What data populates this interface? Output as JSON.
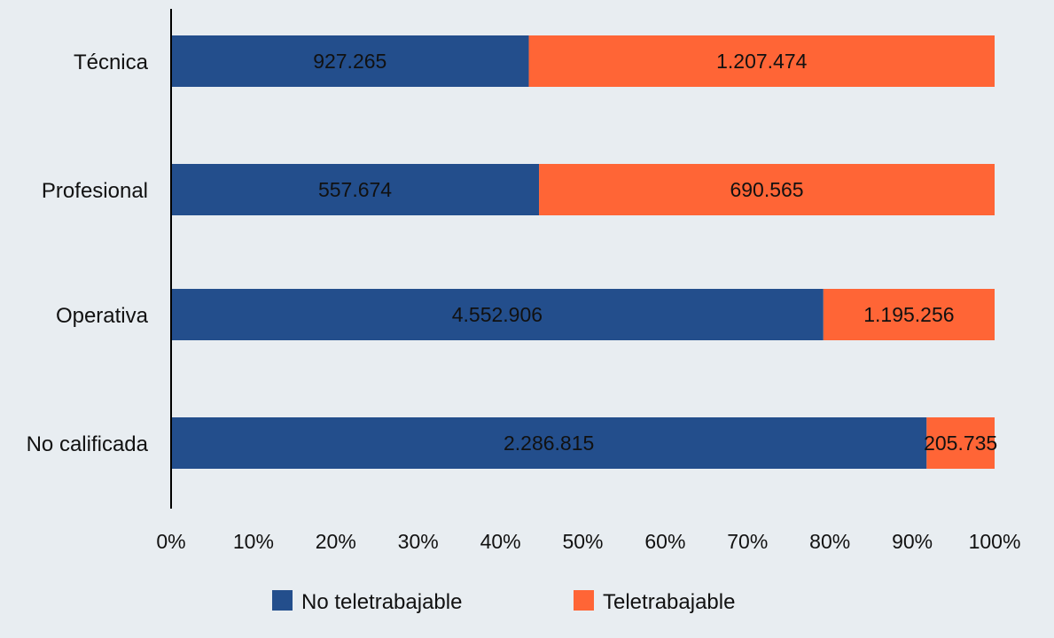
{
  "chart_data": {
    "type": "bar",
    "orientation": "horizontal",
    "stacked": "percent",
    "categories": [
      "Técnica",
      "Profesional",
      "Operativa",
      "No calificada"
    ],
    "series": [
      {
        "name": "No teletrabajable",
        "values": [
          927265,
          557674,
          4552906,
          2286815
        ],
        "labels": [
          "927.265",
          "557.674",
          "4.552.906",
          "2.286.815"
        ],
        "color": "#234e8c"
      },
      {
        "name": "Teletrabajable",
        "values": [
          1207474,
          690565,
          1195256,
          205735
        ],
        "labels": [
          "1.207.474",
          "690.565",
          "1.195.256",
          "205.735"
        ],
        "color": "#ff6536"
      }
    ],
    "x_ticks": [
      "0%",
      "10%",
      "20%",
      "30%",
      "40%",
      "50%",
      "60%",
      "70%",
      "80%",
      "90%",
      "100%"
    ],
    "xlim": [
      0,
      100
    ],
    "grid": false,
    "legend_position": "bottom",
    "title": "",
    "xlabel": "",
    "ylabel": ""
  },
  "colors": {
    "background": "#e8edf1",
    "axis": "#000000",
    "text": "#111111"
  }
}
